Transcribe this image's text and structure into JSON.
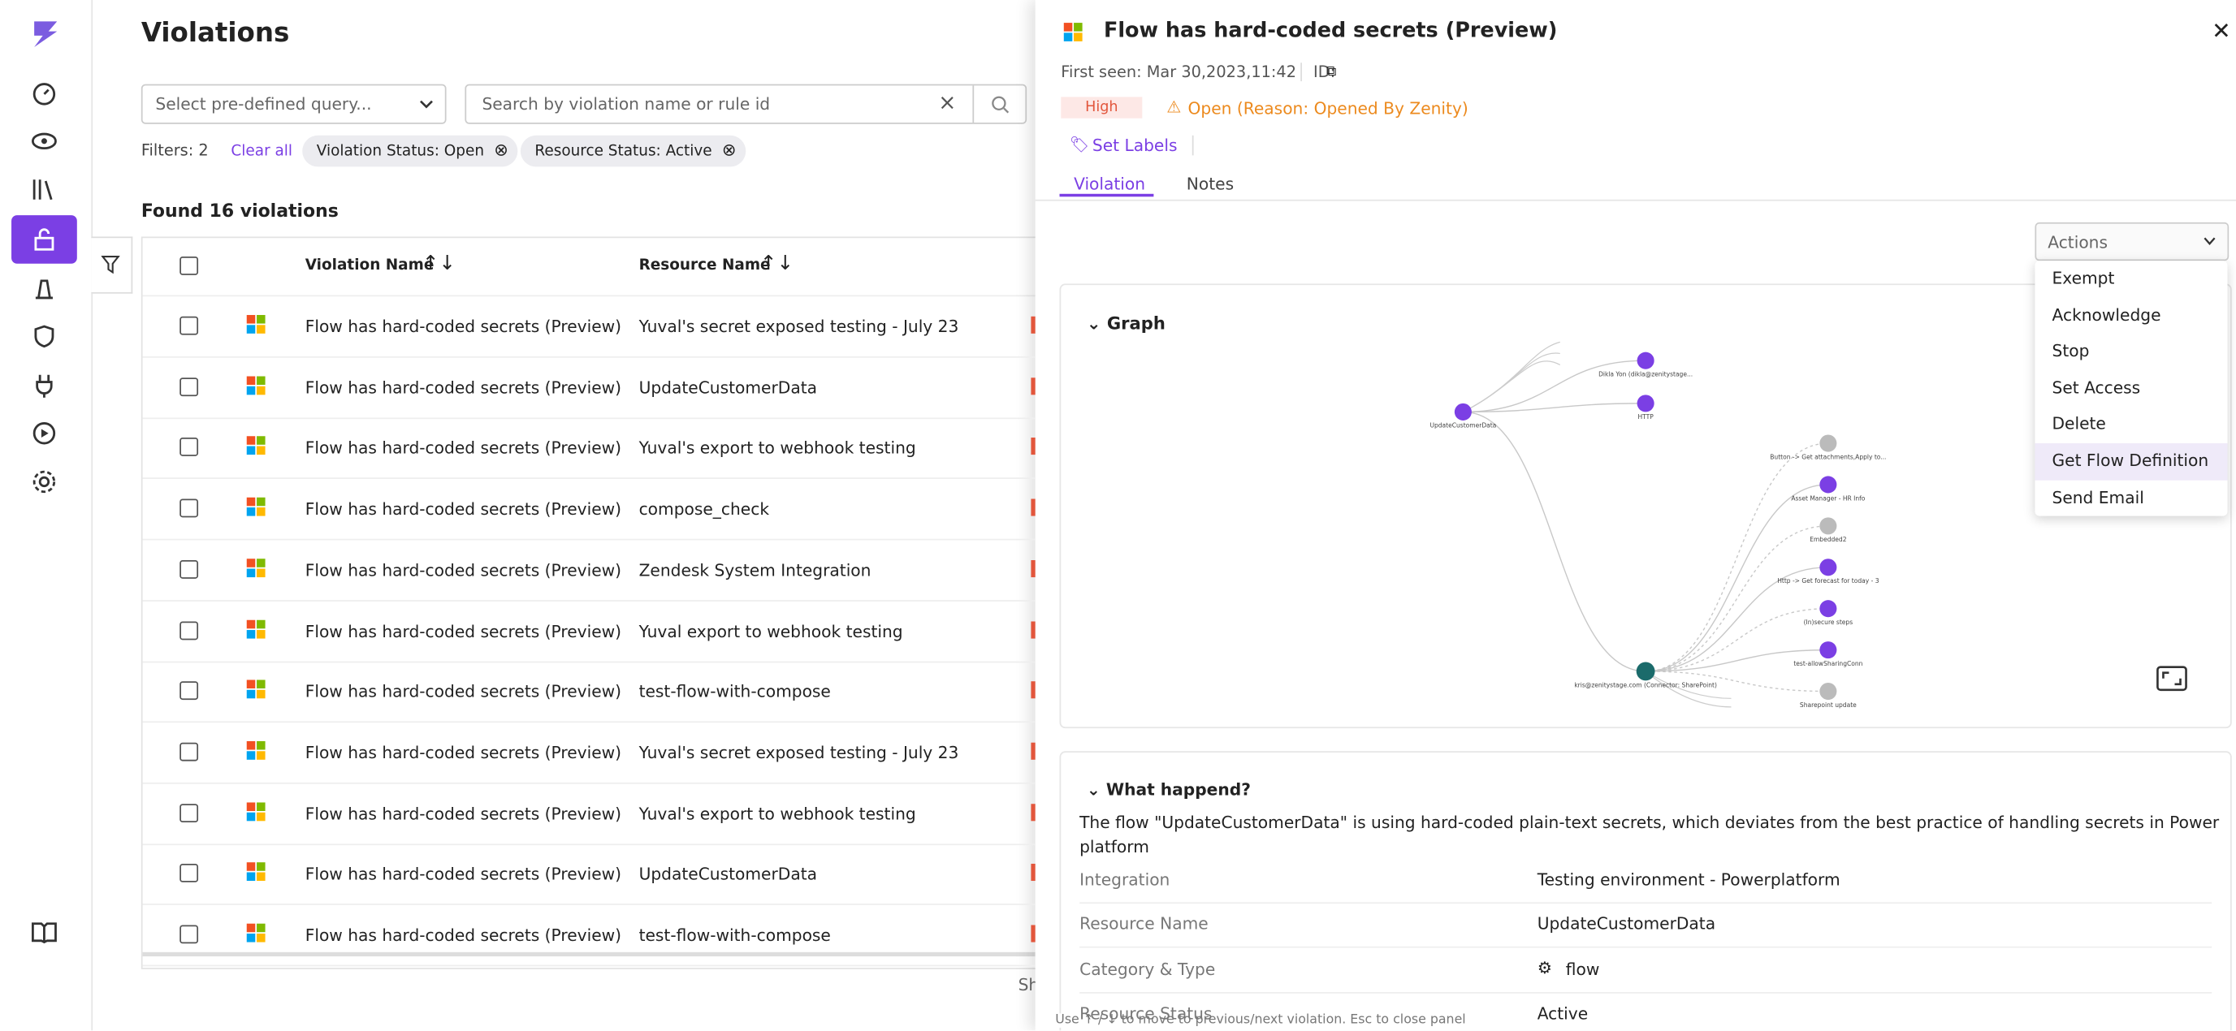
{
  "header": {
    "title": "Violations",
    "query_placeholder": "Select pre-defined query...",
    "search_placeholder": "Search by violation name or rule id",
    "filters_label": "Filters: 2",
    "clear_all": "Clear all",
    "chips": [
      "Violation Status: Open",
      "Resource Status: Active"
    ],
    "found": "Found 16 violations"
  },
  "table": {
    "columns": [
      "Violation Name",
      "Resource Name"
    ],
    "rows": [
      [
        "Flow has hard-coded secrets (Preview)",
        "Yuval's secret exposed testing - July 23"
      ],
      [
        "Flow has hard-coded secrets (Preview)",
        "UpdateCustomerData"
      ],
      [
        "Flow has hard-coded secrets (Preview)",
        "Yuval's export to webhook testing"
      ],
      [
        "Flow has hard-coded secrets (Preview)",
        "compose_check"
      ],
      [
        "Flow has hard-coded secrets (Preview)",
        "Zendesk System Integration"
      ],
      [
        "Flow has hard-coded secrets (Preview)",
        "Yuval export to webhook testing"
      ],
      [
        "Flow has hard-coded secrets (Preview)",
        "test-flow-with-compose"
      ],
      [
        "Flow has hard-coded secrets (Preview)",
        "Yuval's secret exposed testing - July 23"
      ],
      [
        "Flow has hard-coded secrets (Preview)",
        "Yuval's export to webhook testing"
      ],
      [
        "Flow has hard-coded secrets (Preview)",
        "UpdateCustomerData"
      ],
      [
        "Flow has hard-coded secrets (Preview)",
        "test-flow-with-compose"
      ]
    ],
    "footer": "Sh"
  },
  "panel": {
    "title": "Flow has hard-coded secrets (Preview)",
    "first_seen": "First seen: Mar 30,2023,11:42",
    "id_label": "ID:",
    "severity": "High",
    "status": "Open (Reason: Opened By Zenity)",
    "set_labels": "Set Labels",
    "tabs": [
      "Violation",
      "Notes"
    ],
    "actions": "Actions",
    "menu": [
      "Exempt",
      "Acknowledge",
      "Stop",
      "Set Access",
      "Delete",
      "Get Flow Definition",
      "Send Email"
    ],
    "graph_title": "Graph",
    "graph_nodes": [
      "UpdateCustomerData",
      "Dikla Yon (dikla@zenitystage...",
      "HTTP",
      "kris@zenitystage.com (Connector: SharePoint)",
      "Button -> Get attachments,Apply to...",
      "Asset Manager - HR Info",
      "Embedded2",
      "Http -> Get forecast for today - 3",
      "(In)secure steps",
      "test-allowSharingConn",
      "Sharepoint update"
    ],
    "what_title": "What happend?",
    "description": "The flow \"UpdateCustomerData\" is using hard-coded plain-text secrets, which deviates from the best practice of handling secrets in Power platform",
    "details": [
      [
        "Integration",
        "Testing environment - Powerplatform"
      ],
      [
        "Resource Name",
        "UpdateCustomerData"
      ],
      [
        "Category & Type",
        "flow"
      ],
      [
        "Resource Status",
        "Active"
      ]
    ],
    "hint": "Use ↑ / ↓ to move to previous/next violation. Esc to close panel"
  }
}
